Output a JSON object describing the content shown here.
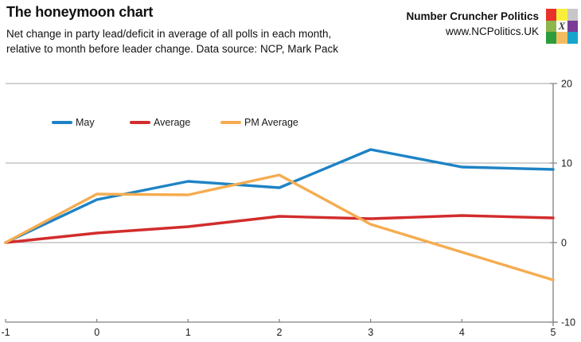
{
  "header": {
    "title": "The honeymoon chart",
    "subtitle_line1": "Net change in party lead/deficit in average of all polls in each month,",
    "subtitle_line2": "relative to month before leader change. Data source: NCP, Mark Pack"
  },
  "branding": {
    "name": "Number Cruncher Politics",
    "url": "www.NCPolitics.UK",
    "logo": {
      "center_letter": "X",
      "cells": [
        "#e8312a",
        "#f8ef3d",
        "#c7c7c7",
        "#8fb64c",
        "#ffffff",
        "#7a3b96",
        "#2d9c3c",
        "#f1bd60",
        "#18a3cb"
      ]
    }
  },
  "chart_data": {
    "type": "line",
    "title": "The honeymoon chart",
    "xlabel": "",
    "ylabel": "",
    "x": [
      -1,
      0,
      1,
      2,
      3,
      4,
      5
    ],
    "series": [
      {
        "name": "May",
        "color": "#1e83c5",
        "values": [
          0,
          5.4,
          7.7,
          6.9,
          11.7,
          9.5,
          9.2
        ]
      },
      {
        "name": "Average",
        "color": "#d22c2c",
        "values": [
          0,
          1.2,
          2.0,
          3.3,
          3.0,
          3.4,
          3.1
        ]
      },
      {
        "name": "PM Average",
        "color": "#f5ac50",
        "values": [
          0,
          6.1,
          6.0,
          8.5,
          2.3,
          -1.2,
          -4.7
        ]
      }
    ],
    "xlim": [
      -1,
      5
    ],
    "ylim": [
      -10,
      20
    ],
    "x_ticks": [
      "-1",
      "0",
      "1",
      "2",
      "3",
      "4",
      "5"
    ],
    "y_ticks": [
      "20",
      "10",
      "0",
      "-10"
    ],
    "grid_values": [
      20,
      10,
      0
    ],
    "grid_on": true,
    "legend_position": "inside-top-left",
    "grid_color": "#a6a6a6",
    "axis_color": "#808080",
    "tick_label_color": "#1a1a1a"
  }
}
